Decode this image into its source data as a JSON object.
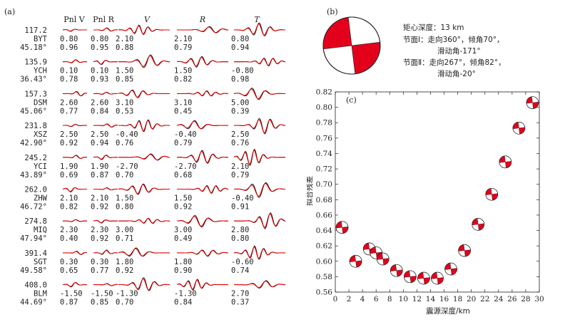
{
  "panel_a": {
    "label": "(a)",
    "columns": [
      "Pnl V",
      "Pnl R",
      "V",
      "R",
      "T"
    ],
    "stations": [
      {
        "distance": "117.2",
        "name": "BYT",
        "azimuth": "45.18°",
        "shifts": [
          "0.80",
          "0.80",
          "2.10",
          "2.10",
          "0.80"
        ],
        "ccs": [
          "0.96",
          "0.95",
          "0.88",
          "0.79",
          "0.94"
        ]
      },
      {
        "distance": "135.9",
        "name": "YCH",
        "azimuth": "36.43°",
        "shifts": [
          "0.10",
          "0.10",
          "1.50",
          "1.50",
          "-0.80"
        ],
        "ccs": [
          "0.78",
          "0.93",
          "0.85",
          "0.82",
          "0.98"
        ]
      },
      {
        "distance": "157.3",
        "name": "DSM",
        "azimuth": "45.06°",
        "shifts": [
          "2.60",
          "2.60",
          "3.10",
          "3.10",
          "5.00"
        ],
        "ccs": [
          "0.77",
          "0.84",
          "0.53",
          "0.45",
          "0.39"
        ]
      },
      {
        "distance": "231.8",
        "name": "XSZ",
        "azimuth": "42.90°",
        "shifts": [
          "2.50",
          "2.50",
          "-0.40",
          "-0.40",
          "2.50"
        ],
        "ccs": [
          "0.92",
          "0.94",
          "0.76",
          "0.79",
          "0.76"
        ]
      },
      {
        "distance": "245.2",
        "name": "YCI",
        "azimuth": "43.89°",
        "shifts": [
          "1.90",
          "1.90",
          "-2.70",
          "-2.70",
          "2.10"
        ],
        "ccs": [
          "0.69",
          "0.87",
          "0.70",
          "0.68",
          "0.79"
        ]
      },
      {
        "distance": "262.0",
        "name": "ZHW",
        "azimuth": "46.72°",
        "shifts": [
          "2.10",
          "2.10",
          "1.50",
          "1.50",
          "-0.40"
        ],
        "ccs": [
          "0.82",
          "0.92",
          "0.80",
          "0.92",
          "0.91"
        ]
      },
      {
        "distance": "274.8",
        "name": "MIQ",
        "azimuth": "47.94°",
        "shifts": [
          "2.30",
          "2.30",
          "3.00",
          "3.00",
          "2.80"
        ],
        "ccs": [
          "0.40",
          "0.92",
          "0.71",
          "0.49",
          "0.80"
        ]
      },
      {
        "distance": "391.4",
        "name": "SGT",
        "azimuth": "49.58°",
        "shifts": [
          "0.30",
          "0.30",
          "1.80",
          "1.80",
          "-0.60"
        ],
        "ccs": [
          "0.65",
          "0.77",
          "0.92",
          "0.90",
          "0.74"
        ]
      },
      {
        "distance": "408.0",
        "name": "BLM",
        "azimuth": "44.69°",
        "shifts": [
          "-1.50",
          "-1.50",
          "-1.30",
          "-1.30",
          "2.70"
        ],
        "ccs": [
          "0.87",
          "0.85",
          "0.70",
          "0.84",
          "0.37"
        ]
      }
    ],
    "colors": {
      "observed": "#111111",
      "synthetic": "#e00000"
    }
  },
  "panel_b": {
    "label": "(b)",
    "line1": "矩心深度：13 km",
    "line2": "节面Ⅰ：走向360°，倾角70°，",
    "line3": "滑动角-171°",
    "line4": "节面Ⅱ：走向267°，倾角82°，",
    "line5": "滑动角-20°",
    "colors": {
      "compression": "#e3001b"
    }
  },
  "chart_data": {
    "type": "scatter",
    "label": "(c)",
    "title": "",
    "xlabel": "震源深度/km",
    "ylabel": "拟合残差",
    "xlim": [
      0,
      30
    ],
    "ylim": [
      0.56,
      0.82
    ],
    "xticks": [
      "0",
      "2",
      "4",
      "6",
      "8",
      "10",
      "12",
      "14",
      "16",
      "18",
      "20",
      "22",
      "24",
      "26",
      "28",
      "30"
    ],
    "yticks": [
      "0.56",
      "0.58",
      "0.60",
      "0.62",
      "0.64",
      "0.66",
      "0.68",
      "0.70",
      "0.72",
      "0.74",
      "0.76",
      "0.78",
      "0.80",
      "0.82"
    ],
    "x": [
      1,
      3,
      5,
      6,
      7,
      9,
      11,
      13,
      15,
      17,
      19,
      21,
      23,
      25,
      27,
      29
    ],
    "y": [
      0.644,
      0.6,
      0.616,
      0.611,
      0.603,
      0.588,
      0.58,
      0.578,
      0.578,
      0.59,
      0.614,
      0.648,
      0.687,
      0.729,
      0.773,
      0.806
    ],
    "marker": "focal-mechanism-beachball"
  }
}
